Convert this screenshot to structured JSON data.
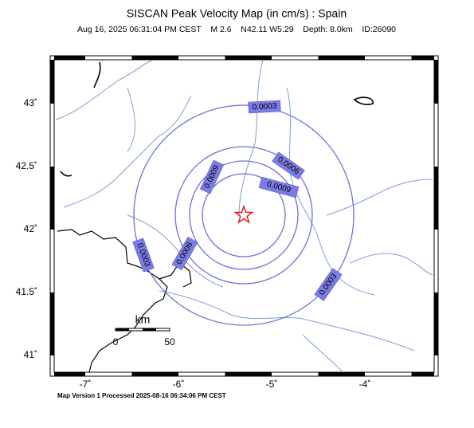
{
  "header": {
    "title": "SISCAN Peak Velocity Map (in cm/s) : Spain",
    "subtitle": "Aug 16, 2025 06:31:04 PM CEST    M 2.6    N42.11 W5.29    Depth: 8.0km    ID:26090"
  },
  "axes": {
    "longitude_labels": [
      "-7˚",
      "-6˚",
      "-5˚",
      "-4˚"
    ],
    "latitude_labels": [
      "43˚",
      "42.5˚",
      "42˚",
      "41.5˚",
      "41˚"
    ]
  },
  "contour_labels": [
    "0.0003",
    "0.0003",
    "0.0003",
    "0.0006",
    "0.0006",
    "0.0009",
    "0.0009"
  ],
  "scale_bar": {
    "unit": "km",
    "start": "0",
    "end": "50"
  },
  "footer": "Map Version 1 Processed 2025-08-16 06:34:06 PM CEST"
}
